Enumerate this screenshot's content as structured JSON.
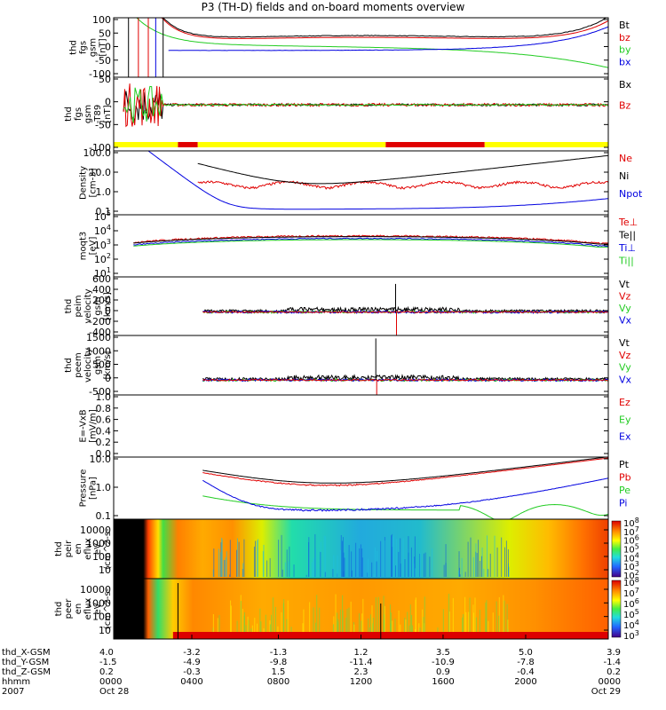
{
  "title": "P3 (TH-D) fields and on-board moments overview",
  "colors": {
    "black": "#000000",
    "red": "#e00000",
    "green": "#22cc22",
    "blue": "#0000e0",
    "yellow": "#ffff00"
  },
  "chart_data": [
    {
      "id": "fgs",
      "type": "line",
      "ylabel": [
        "thd",
        "fgs",
        "gsm",
        "[nT]"
      ],
      "ylim": [
        -100,
        100
      ],
      "yticks": [
        "100",
        "50",
        "0",
        "-50",
        "-100"
      ],
      "series": [
        {
          "name": "Bt",
          "color": "black"
        },
        {
          "name": "bz",
          "color": "red"
        },
        {
          "name": "by",
          "color": "green"
        },
        {
          "name": "bx",
          "color": "blue"
        }
      ]
    },
    {
      "id": "fgs_t89",
      "type": "line",
      "ylabel": [
        "thd",
        "fgs",
        "gsm",
        "-T89",
        "[nT]"
      ],
      "ylim": [
        -125,
        75
      ],
      "yticks": [
        "50",
        "0",
        "-50",
        "-100"
      ],
      "series": [
        {
          "name": "Bx",
          "color": "black"
        },
        {
          "name": "Bz",
          "color": "red"
        }
      ],
      "status_bar": [
        {
          "from": 0.0,
          "to": 0.13,
          "color": "yellow"
        },
        {
          "from": 0.13,
          "to": 0.17,
          "color": "red"
        },
        {
          "from": 0.17,
          "to": 0.55,
          "color": "yellow"
        },
        {
          "from": 0.55,
          "to": 0.75,
          "color": "red"
        },
        {
          "from": 0.75,
          "to": 1.0,
          "color": "yellow"
        }
      ]
    },
    {
      "id": "density",
      "type": "line",
      "ylabel": [
        "Density",
        "[cm-3]"
      ],
      "scale": "log",
      "ylim": [
        0.1,
        100
      ],
      "yticks": [
        "100.0",
        "10.0",
        "1.0",
        "0.1"
      ],
      "series": [
        {
          "name": "Ne",
          "color": "red"
        },
        {
          "name": "Ni",
          "color": "black"
        },
        {
          "name": "Npot",
          "color": "blue"
        }
      ]
    },
    {
      "id": "temp",
      "type": "line",
      "ylabel": [
        "moqt3",
        "[eV]"
      ],
      "scale": "log",
      "ylim": [
        1,
        100000
      ],
      "yticks": [
        "10",
        "10",
        "10",
        "10",
        "10"
      ],
      "yexp": [
        "5",
        "4",
        "3",
        "2",
        "1"
      ],
      "series": [
        {
          "name": "Te⊥",
          "color": "red"
        },
        {
          "name": "Te||",
          "color": "black"
        },
        {
          "name": "Ti⊥",
          "color": "blue"
        },
        {
          "name": "Ti||",
          "color": "green"
        }
      ]
    },
    {
      "id": "peim_v",
      "type": "line",
      "ylabel": [
        "thd",
        "peim",
        "velocity",
        "gsm",
        "[km/s]"
      ],
      "ylim": [
        -400,
        600
      ],
      "yticks": [
        "600",
        "400",
        "200",
        "0",
        "-200",
        "-400"
      ],
      "series": [
        {
          "name": "Vt",
          "color": "black"
        },
        {
          "name": "Vz",
          "color": "red"
        },
        {
          "name": "Vy",
          "color": "green"
        },
        {
          "name": "Vx",
          "color": "blue"
        }
      ]
    },
    {
      "id": "peem_v",
      "type": "line",
      "ylabel": [
        "thd",
        "peem",
        "velocity",
        "gsm",
        "[km/s]"
      ],
      "ylim": [
        -500,
        1500
      ],
      "yticks": [
        "1500",
        "1000",
        "500",
        "0",
        "-500"
      ],
      "series": [
        {
          "name": "Vt",
          "color": "black"
        },
        {
          "name": "Vz",
          "color": "red"
        },
        {
          "name": "Vy",
          "color": "green"
        },
        {
          "name": "Vx",
          "color": "blue"
        }
      ]
    },
    {
      "id": "efield",
      "type": "line",
      "ylabel": [
        "E=-VxB",
        "[mV/m]"
      ],
      "ylim": [
        0,
        1
      ],
      "yticks": [
        "1.0",
        "0.8",
        "0.6",
        "0.4",
        "0.2",
        "0.0"
      ],
      "series": [
        {
          "name": "Ez",
          "color": "red"
        },
        {
          "name": "Ey",
          "color": "green"
        },
        {
          "name": "Ex",
          "color": "blue"
        }
      ]
    },
    {
      "id": "pressure",
      "type": "line",
      "ylabel": [
        "Pressure",
        "[nPa]"
      ],
      "scale": "log",
      "ylim": [
        0.05,
        20
      ],
      "yticks": [
        "10.0",
        "1.0",
        "0.1"
      ],
      "series": [
        {
          "name": "Pt",
          "color": "black"
        },
        {
          "name": "Pb",
          "color": "red"
        },
        {
          "name": "Pe",
          "color": "green"
        },
        {
          "name": "Pi",
          "color": "blue"
        }
      ]
    },
    {
      "id": "peir_spec",
      "type": "heatmap",
      "ylabel": [
        "thd",
        "peir",
        "en",
        "eflux",
        "eV",
        "(cm^2-s-",
        "sr-eV)"
      ],
      "yticks": [
        "10000",
        "1000",
        "100",
        "10"
      ],
      "colorbar": {
        "labels": [
          "10",
          "10",
          "10",
          "10",
          "10",
          "10",
          "10"
        ],
        "exp": [
          "8",
          "7",
          "6",
          "5",
          "4",
          "3",
          "2"
        ]
      }
    },
    {
      "id": "peer_spec",
      "type": "heatmap",
      "ylabel": [
        "thd",
        "peer",
        "en",
        "eflux",
        "eV",
        "(cm^2-s-",
        "sr-eV)"
      ],
      "yticks": [
        "10000",
        "1000",
        "100",
        "10"
      ],
      "colorbar": {
        "labels": [
          "10",
          "10",
          "10",
          "10",
          "10",
          "10"
        ],
        "exp": [
          "8",
          "7",
          "6",
          "5",
          "4",
          "3"
        ]
      }
    }
  ],
  "xaxis": {
    "rows": [
      {
        "label": "thd_X-GSM",
        "values": [
          "4.0",
          "-3.2",
          "-1.3",
          "1.2",
          "3.5",
          "5.0",
          "3.9"
        ]
      },
      {
        "label": "thd_Y-GSM",
        "values": [
          "-1.5",
          "-4.9",
          "-9.8",
          "-11.4",
          "-10.9",
          "-7.8",
          "-1.4"
        ]
      },
      {
        "label": "thd_Z-GSM",
        "values": [
          "0.2",
          "-0.3",
          "1.5",
          "2.3",
          "0.9",
          "-0.4",
          "0.2"
        ]
      },
      {
        "label": "hhmm",
        "values": [
          "0000",
          "0400",
          "0800",
          "1200",
          "1600",
          "2000",
          "0000"
        ]
      },
      {
        "label": "2007",
        "values": [
          "Oct 28",
          "",
          "",
          "",
          "",
          "",
          "Oct 29"
        ]
      }
    ]
  }
}
